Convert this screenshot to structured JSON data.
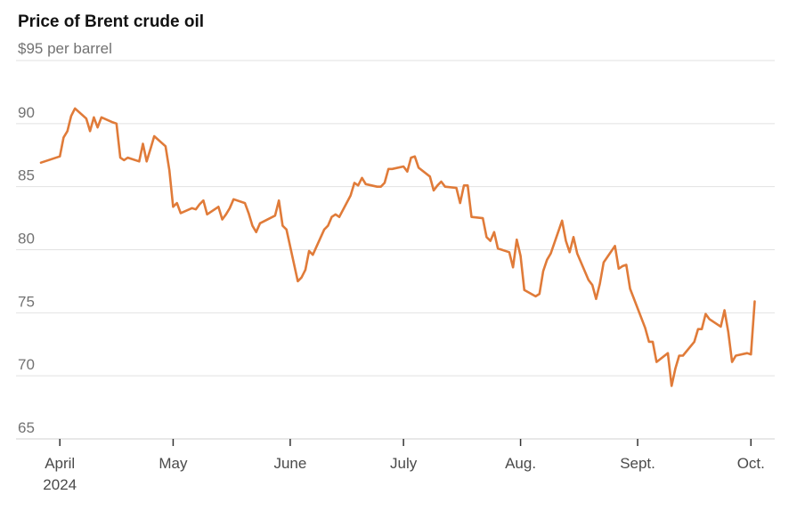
{
  "chart_data": {
    "type": "line",
    "title": "Price of Brent crude oil",
    "subtitle": "$95 per barrel",
    "xlabel": "",
    "ylabel": "",
    "ylim": [
      65,
      95
    ],
    "yticks": [
      65,
      70,
      75,
      80,
      85,
      90
    ],
    "xlim": [
      "2024-03-27",
      "2024-10-04"
    ],
    "xticks": [
      {
        "date": "2024-04-01",
        "label": "April",
        "sublabel": "2024"
      },
      {
        "date": "2024-05-01",
        "label": "May",
        "sublabel": ""
      },
      {
        "date": "2024-06-01",
        "label": "June",
        "sublabel": ""
      },
      {
        "date": "2024-07-01",
        "label": "July",
        "sublabel": ""
      },
      {
        "date": "2024-08-01",
        "label": "Aug.",
        "sublabel": ""
      },
      {
        "date": "2024-09-01",
        "label": "Sept.",
        "sublabel": ""
      },
      {
        "date": "2024-10-01",
        "label": "Oct.",
        "sublabel": ""
      }
    ],
    "grid": true,
    "legend": "none",
    "line_color": "#e07b39",
    "series": [
      {
        "x": [
          "2024-03-27",
          "2024-03-28",
          "2024-04-01",
          "2024-04-02",
          "2024-04-03",
          "2024-04-04",
          "2024-04-05",
          "2024-04-08",
          "2024-04-09",
          "2024-04-10",
          "2024-04-11",
          "2024-04-12",
          "2024-04-15",
          "2024-04-16",
          "2024-04-17",
          "2024-04-18",
          "2024-04-19",
          "2024-04-22",
          "2024-04-23",
          "2024-04-24",
          "2024-04-25",
          "2024-04-26",
          "2024-04-29",
          "2024-04-30",
          "2024-05-01",
          "2024-05-02",
          "2024-05-03",
          "2024-05-06",
          "2024-05-07",
          "2024-05-08",
          "2024-05-09",
          "2024-05-10",
          "2024-05-13",
          "2024-05-14",
          "2024-05-15",
          "2024-05-16",
          "2024-05-17",
          "2024-05-20",
          "2024-05-21",
          "2024-05-22",
          "2024-05-23",
          "2024-05-24",
          "2024-05-28",
          "2024-05-29",
          "2024-05-30",
          "2024-05-31",
          "2024-06-03",
          "2024-06-04",
          "2024-06-05",
          "2024-06-06",
          "2024-06-07",
          "2024-06-10",
          "2024-06-11",
          "2024-06-12",
          "2024-06-13",
          "2024-06-14",
          "2024-06-17",
          "2024-06-18",
          "2024-06-19",
          "2024-06-20",
          "2024-06-21",
          "2024-06-24",
          "2024-06-25",
          "2024-06-26",
          "2024-06-27",
          "2024-06-28",
          "2024-07-01",
          "2024-07-02",
          "2024-07-03",
          "2024-07-04",
          "2024-07-05",
          "2024-07-08",
          "2024-07-09",
          "2024-07-10",
          "2024-07-11",
          "2024-07-12",
          "2024-07-15",
          "2024-07-16",
          "2024-07-17",
          "2024-07-18",
          "2024-07-19",
          "2024-07-22",
          "2024-07-23",
          "2024-07-24",
          "2024-07-25",
          "2024-07-26",
          "2024-07-29",
          "2024-07-30",
          "2024-07-31",
          "2024-08-01",
          "2024-08-02",
          "2024-08-05",
          "2024-08-06",
          "2024-08-07",
          "2024-08-08",
          "2024-08-09",
          "2024-08-12",
          "2024-08-13",
          "2024-08-14",
          "2024-08-15",
          "2024-08-16",
          "2024-08-19",
          "2024-08-20",
          "2024-08-21",
          "2024-08-22",
          "2024-08-23",
          "2024-08-26",
          "2024-08-27",
          "2024-08-28",
          "2024-08-29",
          "2024-08-30",
          "2024-09-03",
          "2024-09-04",
          "2024-09-05",
          "2024-09-06",
          "2024-09-09",
          "2024-09-10",
          "2024-09-11",
          "2024-09-12",
          "2024-09-13",
          "2024-09-16",
          "2024-09-17",
          "2024-09-18",
          "2024-09-19",
          "2024-09-20",
          "2024-09-23",
          "2024-09-24",
          "2024-09-25",
          "2024-09-26",
          "2024-09-27",
          "2024-09-30",
          "2024-10-01",
          "2024-10-02"
        ],
        "values": [
          86.9,
          87.0,
          87.4,
          88.9,
          89.4,
          90.6,
          91.2,
          90.4,
          89.4,
          90.5,
          89.7,
          90.5,
          90.1,
          90.0,
          87.3,
          87.1,
          87.3,
          87.0,
          88.4,
          87.0,
          88.0,
          89.0,
          88.2,
          86.3,
          83.4,
          83.7,
          82.9,
          83.3,
          83.2,
          83.6,
          83.9,
          82.8,
          83.4,
          82.4,
          82.8,
          83.3,
          84.0,
          83.7,
          82.9,
          81.9,
          81.4,
          82.1,
          82.7,
          83.9,
          81.9,
          81.6,
          77.5,
          77.8,
          78.4,
          79.9,
          79.6,
          81.6,
          81.9,
          82.6,
          82.8,
          82.6,
          84.3,
          85.3,
          85.1,
          85.7,
          85.2,
          85.0,
          85.0,
          85.3,
          86.4,
          86.4,
          86.6,
          86.2,
          87.3,
          87.4,
          86.5,
          85.8,
          84.7,
          85.1,
          85.4,
          85.0,
          84.9,
          83.7,
          85.1,
          85.1,
          82.6,
          82.5,
          81.0,
          80.7,
          81.4,
          80.1,
          79.8,
          78.6,
          80.8,
          79.5,
          76.8,
          76.3,
          76.5,
          78.3,
          79.2,
          79.7,
          82.3,
          80.7,
          79.8,
          81.0,
          79.7,
          77.6,
          77.2,
          76.1,
          77.3,
          79.0,
          80.3,
          78.5,
          78.7,
          78.8,
          76.9,
          73.8,
          72.7,
          72.7,
          71.1,
          71.8,
          69.2,
          70.6,
          71.6,
          71.6,
          72.7,
          73.7,
          73.7,
          74.9,
          74.5,
          73.9,
          75.2,
          73.5,
          71.1,
          71.6,
          71.8,
          71.7,
          75.9
        ]
      }
    ]
  }
}
